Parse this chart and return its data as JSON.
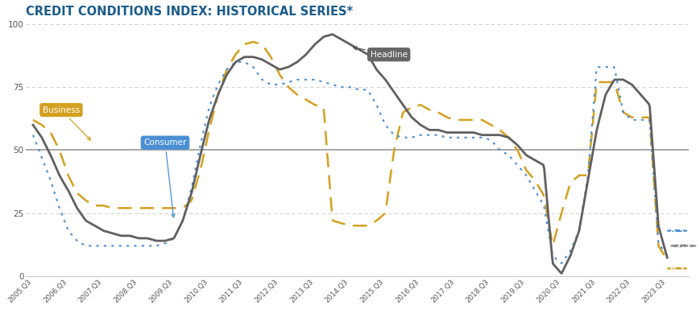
{
  "title": "CREDIT CONDITIONS INDEX: HISTORICAL SERIES*",
  "title_color": "#1a5c8a",
  "background_color": "#ffffff",
  "ylim": [
    0,
    100
  ],
  "yticks": [
    0,
    25,
    50,
    75,
    100
  ],
  "headline_color": "#606060",
  "business_color": "#d4a020",
  "consumer_color": "#4a8fd4",
  "xtick_labels": [
    "2005.Q3",
    "2006.Q3",
    "2007.Q3",
    "2008.Q3",
    "2009.Q3",
    "2010.Q3",
    "2011.Q3",
    "2012.Q3",
    "2013.Q3",
    "2014.Q3",
    "2015.Q3",
    "2016.Q3",
    "2017.Q3",
    "2018.Q3",
    "2019.Q3",
    "2020.Q3",
    "2021.Q3",
    "2022.Q3",
    "2023.Q3"
  ],
  "h_x": [
    2005.5,
    2005.75,
    2006.0,
    2006.25,
    2006.5,
    2006.75,
    2007.0,
    2007.25,
    2007.5,
    2007.75,
    2008.0,
    2008.25,
    2008.5,
    2008.75,
    2009.0,
    2009.25,
    2009.5,
    2009.75,
    2010.0,
    2010.25,
    2010.5,
    2010.75,
    2011.0,
    2011.25,
    2011.5,
    2011.75,
    2012.0,
    2012.25,
    2012.5,
    2012.75,
    2013.0,
    2013.25,
    2013.5,
    2013.75,
    2014.0,
    2014.25,
    2014.5,
    2014.75,
    2015.0,
    2015.25,
    2015.5,
    2015.75,
    2016.0,
    2016.25,
    2016.5,
    2016.75,
    2017.0,
    2017.25,
    2017.5,
    2017.75,
    2018.0,
    2018.25,
    2018.5,
    2018.75,
    2019.0,
    2019.25,
    2019.5,
    2019.75,
    2020.0,
    2020.25,
    2020.5,
    2020.75,
    2021.0,
    2021.25,
    2021.5,
    2021.75,
    2022.0,
    2022.25,
    2022.5,
    2022.75,
    2023.0,
    2023.25,
    2023.5
  ],
  "h_y": [
    60,
    55,
    48,
    40,
    34,
    27,
    22,
    20,
    18,
    17,
    16,
    16,
    15,
    15,
    14,
    14,
    15,
    22,
    33,
    48,
    62,
    72,
    80,
    85,
    87,
    87,
    86,
    84,
    82,
    83,
    85,
    88,
    92,
    95,
    96,
    94,
    92,
    90,
    88,
    82,
    78,
    73,
    68,
    63,
    60,
    58,
    58,
    57,
    57,
    57,
    57,
    56,
    56,
    56,
    55,
    52,
    48,
    46,
    44,
    5,
    1,
    8,
    18,
    38,
    58,
    72,
    78,
    78,
    76,
    72,
    68,
    20,
    7.3
  ],
  "b_x": [
    2005.5,
    2005.75,
    2006.0,
    2006.25,
    2006.5,
    2006.75,
    2007.0,
    2007.25,
    2007.5,
    2007.75,
    2008.0,
    2008.25,
    2008.5,
    2008.75,
    2009.0,
    2009.25,
    2009.5,
    2009.75,
    2010.0,
    2010.25,
    2010.5,
    2010.75,
    2011.0,
    2011.25,
    2011.5,
    2011.75,
    2012.0,
    2012.25,
    2012.5,
    2012.75,
    2013.0,
    2013.25,
    2013.5,
    2013.75,
    2014.0,
    2014.25,
    2014.5,
    2014.75,
    2015.0,
    2015.25,
    2015.5,
    2015.75,
    2016.0,
    2016.25,
    2016.5,
    2016.75,
    2017.0,
    2017.25,
    2017.5,
    2017.75,
    2018.0,
    2018.25,
    2018.5,
    2018.75,
    2019.0,
    2019.25,
    2019.5,
    2019.75,
    2020.0,
    2020.25,
    2020.5,
    2020.75,
    2021.0,
    2021.25,
    2021.5,
    2021.75,
    2022.0,
    2022.25,
    2022.5,
    2022.75,
    2023.0,
    2023.25,
    2023.5
  ],
  "b_y": [
    62,
    60,
    57,
    50,
    40,
    33,
    30,
    28,
    28,
    27,
    27,
    27,
    27,
    27,
    27,
    27,
    27,
    27,
    30,
    42,
    58,
    72,
    82,
    88,
    92,
    93,
    92,
    87,
    80,
    75,
    72,
    70,
    68,
    67,
    22,
    21,
    20,
    20,
    20,
    22,
    25,
    50,
    65,
    67,
    68,
    66,
    65,
    63,
    62,
    62,
    62,
    62,
    60,
    58,
    55,
    50,
    42,
    38,
    32,
    12,
    25,
    37,
    40,
    40,
    77,
    77,
    77,
    65,
    63,
    63,
    63,
    12,
    6.3
  ],
  "c_x": [
    2005.5,
    2005.75,
    2006.0,
    2006.25,
    2006.5,
    2006.75,
    2007.0,
    2007.25,
    2007.5,
    2007.75,
    2008.0,
    2008.25,
    2008.5,
    2008.75,
    2009.0,
    2009.25,
    2009.5,
    2009.75,
    2010.0,
    2010.25,
    2010.5,
    2010.75,
    2011.0,
    2011.25,
    2011.5,
    2011.75,
    2012.0,
    2012.25,
    2012.5,
    2012.75,
    2013.0,
    2013.25,
    2013.5,
    2013.75,
    2014.0,
    2014.25,
    2014.5,
    2014.75,
    2015.0,
    2015.25,
    2015.5,
    2015.75,
    2016.0,
    2016.25,
    2016.5,
    2016.75,
    2017.0,
    2017.25,
    2017.5,
    2017.75,
    2018.0,
    2018.25,
    2018.5,
    2018.75,
    2019.0,
    2019.25,
    2019.5,
    2019.75,
    2020.0,
    2020.25,
    2020.5,
    2020.75,
    2021.0,
    2021.25,
    2021.5,
    2021.75,
    2022.0,
    2022.25,
    2022.5,
    2022.75,
    2023.0,
    2023.25,
    2023.5
  ],
  "c_y": [
    56,
    47,
    38,
    27,
    18,
    14,
    12,
    12,
    12,
    12,
    12,
    12,
    12,
    12,
    12,
    13,
    15,
    22,
    35,
    52,
    67,
    76,
    82,
    85,
    85,
    83,
    78,
    76,
    76,
    77,
    78,
    78,
    78,
    77,
    76,
    75,
    75,
    74,
    74,
    68,
    60,
    56,
    55,
    55,
    56,
    56,
    56,
    55,
    55,
    55,
    55,
    55,
    54,
    50,
    48,
    44,
    40,
    34,
    28,
    8,
    5,
    10,
    18,
    40,
    83,
    83,
    83,
    65,
    62,
    62,
    62,
    13,
    8.3
  ]
}
